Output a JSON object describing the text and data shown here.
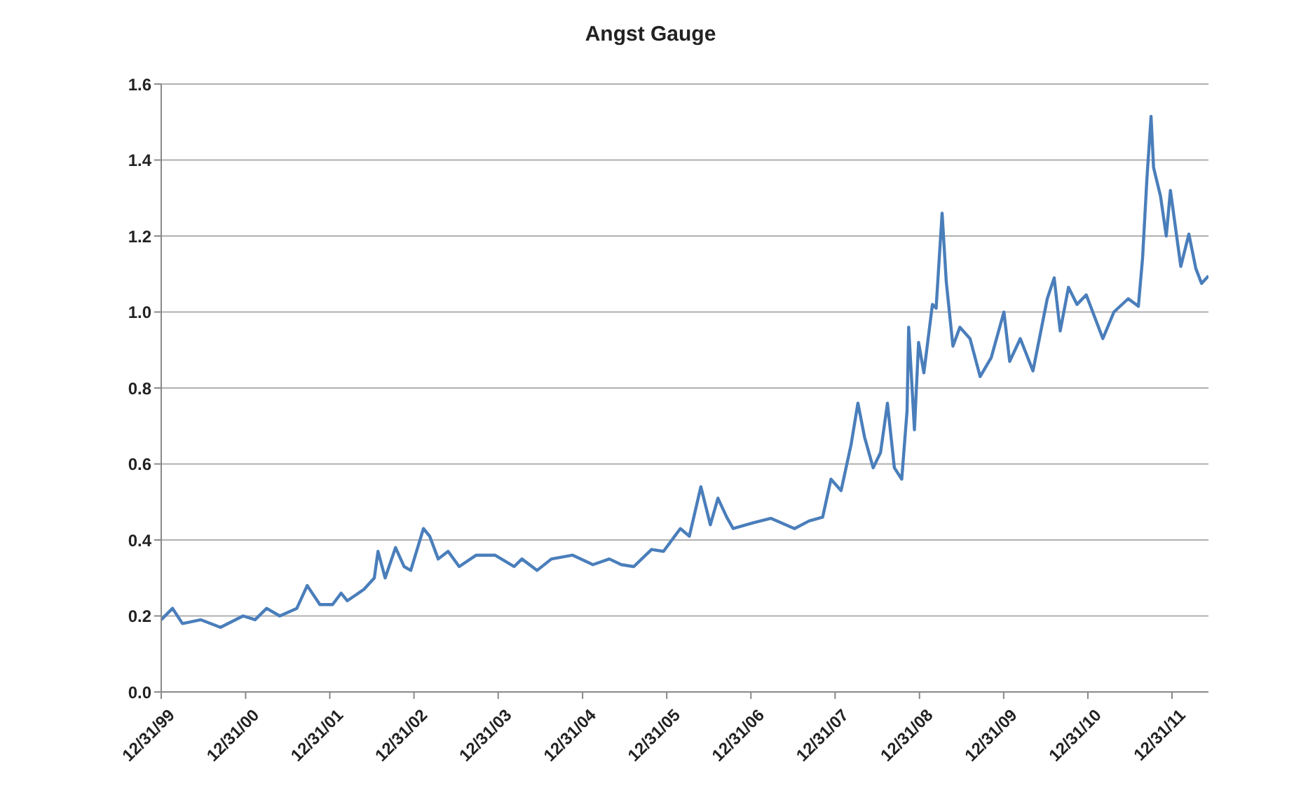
{
  "chart_data": {
    "type": "line",
    "title": "Angst Gauge",
    "x": [
      "1999-12-31",
      "2000-02-18",
      "2000-04-01",
      "2000-06-20",
      "2000-09-13",
      "2000-12-20",
      "2001-02-10",
      "2001-04-01",
      "2001-05-28",
      "2001-08-10",
      "2001-09-24",
      "2001-11-18",
      "2002-01-12",
      "2002-02-18",
      "2002-03-17",
      "2002-05-28",
      "2002-07-12",
      "2002-07-28",
      "2002-08-28",
      "2002-10-12",
      "2002-11-18",
      "2002-12-17",
      "2003-02-10",
      "2003-03-09",
      "2003-04-15",
      "2003-05-28",
      "2003-07-15",
      "2003-09-27",
      "2003-12-17",
      "2004-03-09",
      "2004-04-12",
      "2004-06-17",
      "2004-08-18",
      "2004-11-18",
      "2005-02-14",
      "2005-04-26",
      "2005-06-17",
      "2005-08-10",
      "2005-10-26",
      "2005-12-17",
      "2006-02-28",
      "2006-04-08",
      "2006-05-28",
      "2006-07-08",
      "2006-08-10",
      "2006-09-17",
      "2006-10-15",
      "2007-01-08",
      "2007-03-27",
      "2007-07-08",
      "2007-09-09",
      "2007-11-07",
      "2007-12-13",
      "2008-01-26",
      "2008-03-09",
      "2008-04-08",
      "2008-05-07",
      "2008-06-13",
      "2008-07-15",
      "2008-08-14",
      "2008-09-13",
      "2008-10-15",
      "2008-11-07",
      "2008-11-14",
      "2008-12-09",
      "2008-12-27",
      "2009-01-19",
      "2009-02-25",
      "2009-03-13",
      "2009-04-08",
      "2009-04-26",
      "2009-05-25",
      "2009-06-24",
      "2009-08-07",
      "2009-09-20",
      "2009-11-07",
      "2010-01-01",
      "2010-01-26",
      "2010-03-13",
      "2010-05-07",
      "2010-07-08",
      "2010-08-07",
      "2010-09-02",
      "2010-10-08",
      "2010-11-14",
      "2010-12-24",
      "2011-03-06",
      "2011-04-23",
      "2011-06-24",
      "2011-08-07",
      "2011-08-25",
      "2011-09-13",
      "2011-10-01",
      "2011-10-12",
      "2011-11-11",
      "2011-12-06",
      "2011-12-24",
      "2012-02-07",
      "2012-03-13",
      "2012-04-12",
      "2012-05-07",
      "2012-06-06"
    ],
    "series": [
      {
        "color": "#4a7ebb",
        "values": [
          0.19,
          0.22,
          0.18,
          0.19,
          0.17,
          0.2,
          0.19,
          0.22,
          0.2,
          0.22,
          0.28,
          0.23,
          0.23,
          0.26,
          0.24,
          0.27,
          0.3,
          0.37,
          0.3,
          0.38,
          0.33,
          0.32,
          0.43,
          0.41,
          0.35,
          0.37,
          0.33,
          0.36,
          0.36,
          0.33,
          0.35,
          0.32,
          0.35,
          0.36,
          0.335,
          0.35,
          0.335,
          0.33,
          0.375,
          0.37,
          0.43,
          0.41,
          0.54,
          0.44,
          0.51,
          0.46,
          0.43,
          0.445,
          0.457,
          0.43,
          0.45,
          0.46,
          0.56,
          0.53,
          0.65,
          0.76,
          0.67,
          0.59,
          0.63,
          0.76,
          0.59,
          0.56,
          0.74,
          0.96,
          0.69,
          0.92,
          0.84,
          1.02,
          1.01,
          1.26,
          1.08,
          0.91,
          0.96,
          0.93,
          0.83,
          0.88,
          1.0,
          0.87,
          0.93,
          0.845,
          1.035,
          1.09,
          0.95,
          1.065,
          1.02,
          1.045,
          0.93,
          1.0,
          1.035,
          1.015,
          1.14,
          1.35,
          1.515,
          1.38,
          1.305,
          1.2,
          1.32,
          1.12,
          1.205,
          1.115,
          1.075,
          1.095
        ]
      }
    ],
    "xlim": [
      "1999-12-31",
      "2012-06-06"
    ],
    "xticks": [
      {
        "value": "1999-12-31",
        "label": "12/31/99"
      },
      {
        "value": "2000-12-31",
        "label": "12/31/00"
      },
      {
        "value": "2001-12-31",
        "label": "12/31/01"
      },
      {
        "value": "2002-12-31",
        "label": "12/31/02"
      },
      {
        "value": "2003-12-31",
        "label": "12/31/03"
      },
      {
        "value": "2004-12-31",
        "label": "12/31/04"
      },
      {
        "value": "2005-12-31",
        "label": "12/31/05"
      },
      {
        "value": "2006-12-31",
        "label": "12/31/06"
      },
      {
        "value": "2007-12-31",
        "label": "12/31/07"
      },
      {
        "value": "2008-12-31",
        "label": "12/31/08"
      },
      {
        "value": "2009-12-31",
        "label": "12/31/09"
      },
      {
        "value": "2010-12-31",
        "label": "12/31/10"
      },
      {
        "value": "2011-12-31",
        "label": "12/31/11"
      }
    ],
    "ylim": [
      0,
      1.6
    ],
    "yticks": [
      {
        "value": 0,
        "label": "0.0"
      },
      {
        "value": 0.2,
        "label": "0.2"
      },
      {
        "value": 0.4,
        "label": "0.4"
      },
      {
        "value": 0.6,
        "label": "0.6"
      },
      {
        "value": 0.8,
        "label": "0.8"
      },
      {
        "value": 1.0,
        "label": "1.0"
      },
      {
        "value": 1.2,
        "label": "1.2"
      },
      {
        "value": 1.4,
        "label": "1.4"
      },
      {
        "value": 1.6,
        "label": "1.6"
      }
    ],
    "grid": "y",
    "legend": false,
    "marker": "none",
    "line_style": "solid"
  }
}
